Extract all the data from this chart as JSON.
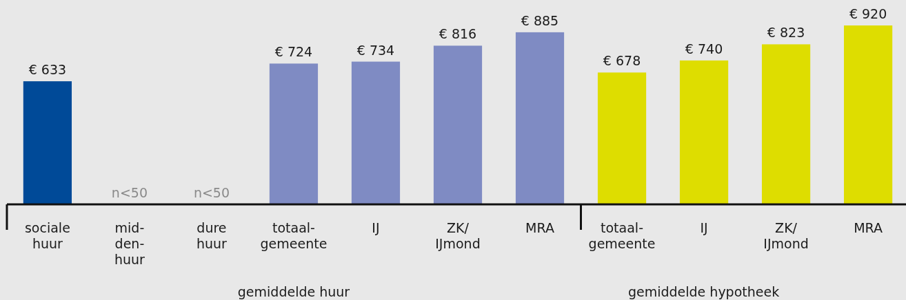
{
  "chart_data": {
    "type": "bar",
    "categories": [
      "sociale\nhuur",
      "mid-\nden-\nhuur",
      "dure\nhuur",
      "totaal-\ngemeente",
      "IJ",
      "ZK/\nIJmond",
      "MRA",
      "totaal-\ngemeente",
      "IJ",
      "ZK/\nIJmond",
      "MRA"
    ],
    "values": [
      633,
      null,
      null,
      724,
      734,
      816,
      885,
      678,
      740,
      823,
      920
    ],
    "colors": [
      "#004a98",
      null,
      null,
      "#7f8bc3",
      "#7f8bc3",
      "#7f8bc3",
      "#7f8bc3",
      "#dedd00",
      "#dedd00",
      "#dedd00",
      "#dedd00"
    ],
    "value_labels": [
      "€ 633",
      "n<50",
      "n<50",
      "€ 724",
      "€ 734",
      "€ 816",
      "€ 885",
      "€ 678",
      "€ 740",
      "€ 823",
      "€ 920"
    ],
    "annotations": [
      "gemiddelde huur",
      "gemiddelde hypotheek"
    ]
  }
}
